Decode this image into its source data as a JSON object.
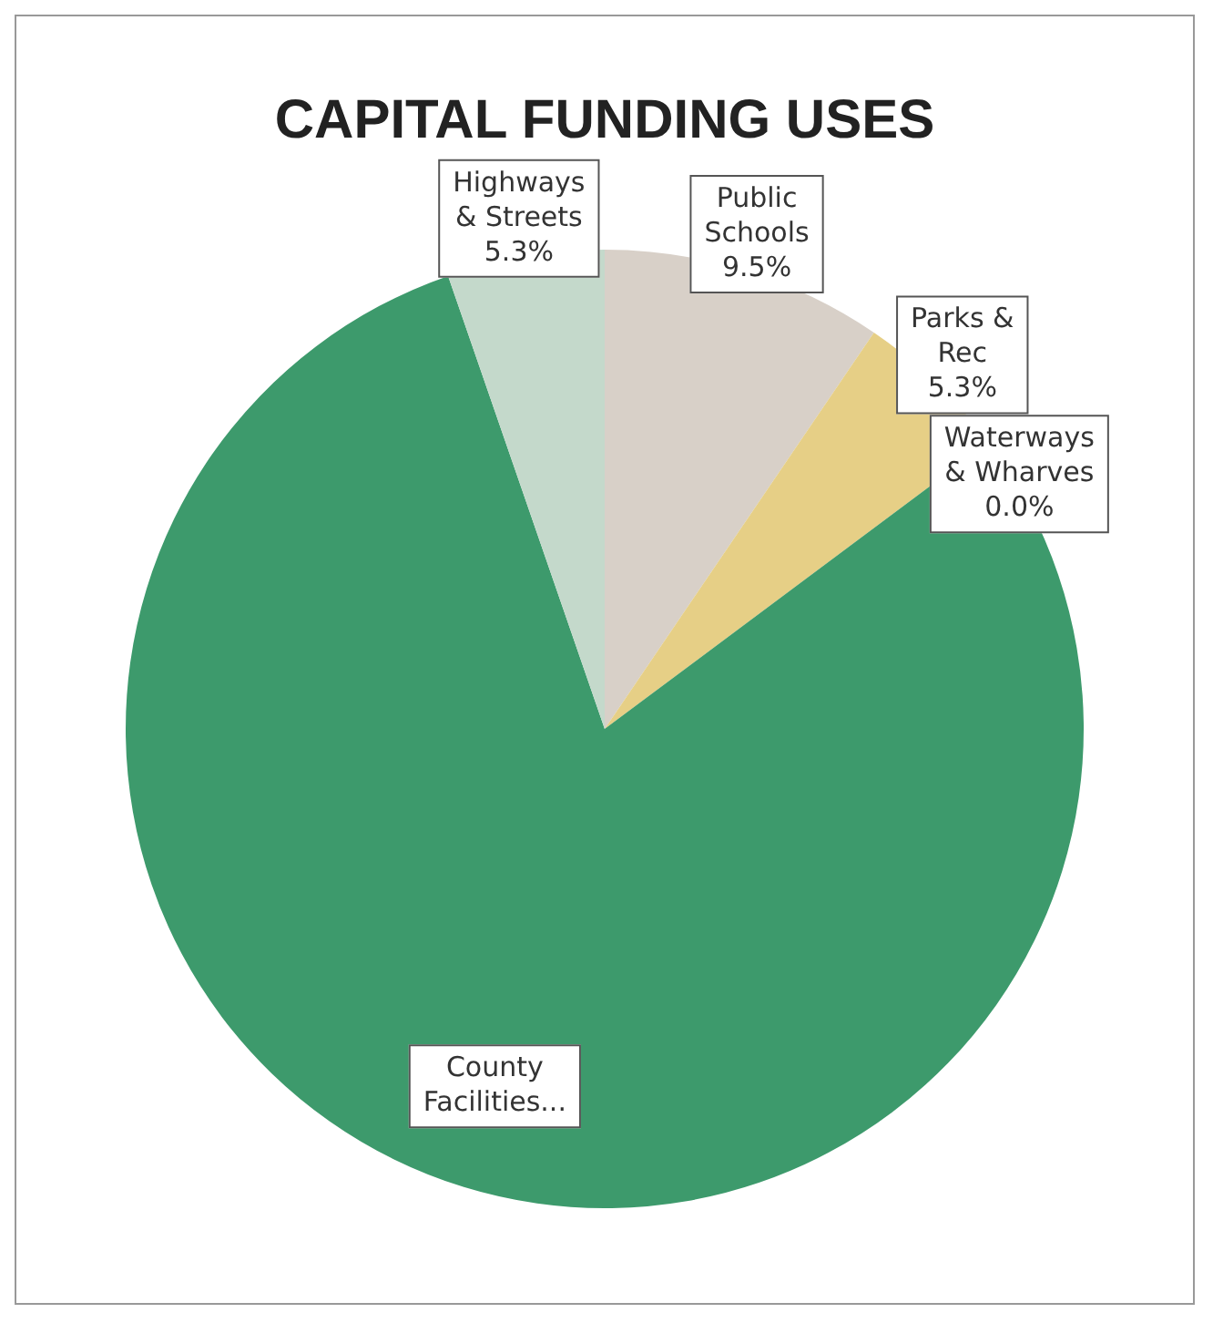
{
  "chart_data": {
    "type": "pie",
    "title": "CAPITAL FUNDING USES",
    "categories": [
      "Public Schools",
      "Parks & Rec",
      "Waterways & Wharves",
      "County Facilities...",
      "Highways & Streets"
    ],
    "values": [
      9.5,
      5.3,
      0.0,
      79.9,
      5.3
    ],
    "colors": [
      "#d8d0c8",
      "#e6cf86",
      "#3d9a6c",
      "#3d9a6c",
      "#c4d9cb"
    ],
    "value_labels": [
      "9.5%",
      "5.3%",
      "0.0%",
      null,
      "5.3%"
    ],
    "legend": false
  }
}
